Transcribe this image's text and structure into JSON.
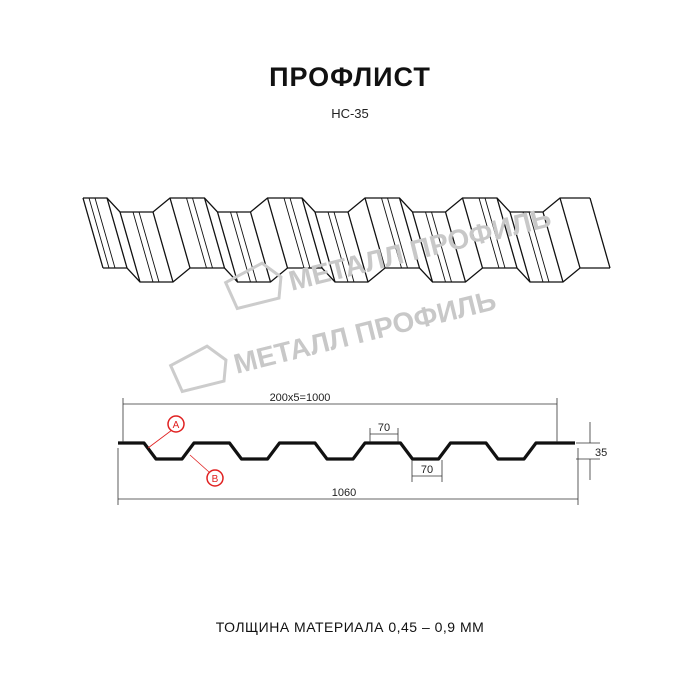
{
  "title": "ПРОФЛИСТ",
  "model": "НС-35",
  "watermark": "МЕТАЛЛ ПРОФИЛЬ",
  "dimensions": {
    "pitch": "200x5=1000",
    "crest_width": "70",
    "valley_width": "70",
    "height": "35",
    "total_width": "1060"
  },
  "markers": {
    "a": "A",
    "b": "B"
  },
  "footer": "ТОЛЩИНА МАТЕРИАЛА 0,45 – 0,9 ММ",
  "colors": {
    "line": "#111111",
    "marker": "#e02020",
    "watermark": "#c8c8c8"
  }
}
